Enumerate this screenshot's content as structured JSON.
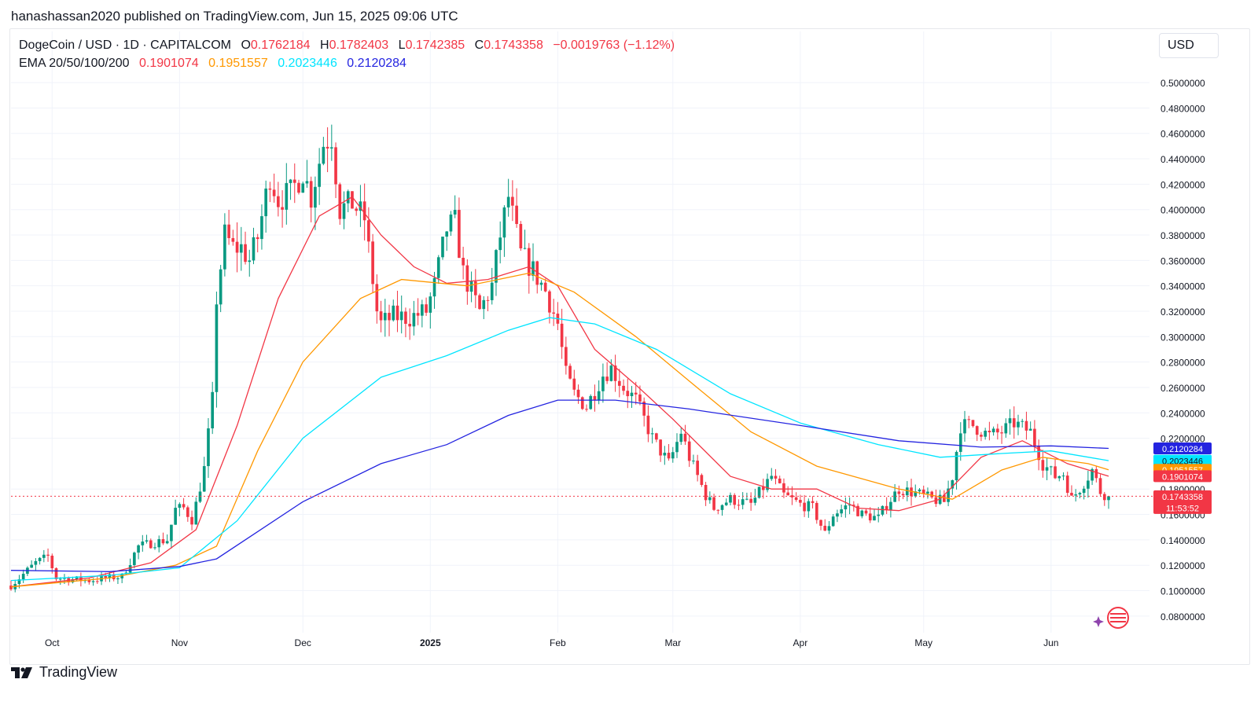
{
  "publisher_line": "hanashassan2020 published on TradingView.com, Jun 15, 2025 09:06 UTC",
  "legend": {
    "symbol": "DogeCoin / USD · 1D · CAPITALCOM",
    "o_label": "O",
    "o_value": "0.1762184",
    "h_label": "H",
    "h_value": "0.1782403",
    "l_label": "L",
    "l_value": "0.1742385",
    "c_label": "C",
    "c_value": "0.1743358",
    "change": "−0.0019763 (−1.12%)",
    "ema_label": "EMA 20/50/100/200",
    "ema20": "0.1901074",
    "ema50": "0.1951557",
    "ema100": "0.2023446",
    "ema200": "0.2120284"
  },
  "currency": "USD",
  "footer_brand": "TradingView",
  "colors": {
    "up": "#089981",
    "down": "#f23645",
    "ema20": "#f23645",
    "ema50": "#ff9800",
    "ema100": "#00e5ff",
    "ema200": "#2424e0"
  },
  "chart_data": {
    "type": "candlestick",
    "title": "DogeCoin / USD · 1D · CAPITALCOM",
    "ylim": [
      0.07,
      0.505
    ],
    "y_ticks": [
      "0.5000000",
      "0.4800000",
      "0.4600000",
      "0.4400000",
      "0.4200000",
      "0.4000000",
      "0.3800000",
      "0.3600000",
      "0.3400000",
      "0.3200000",
      "0.3000000",
      "0.2800000",
      "0.2600000",
      "0.2400000",
      "0.2200000",
      "0.1800000",
      "0.1600000",
      "0.1400000",
      "0.1200000",
      "0.1000000",
      "0.0800000"
    ],
    "x_labels": [
      {
        "label": "Oct",
        "date": "2024-10-01"
      },
      {
        "label": "Nov",
        "date": "2024-11-01"
      },
      {
        "label": "Dec",
        "date": "2024-12-01"
      },
      {
        "label": "2025",
        "date": "2025-01-01"
      },
      {
        "label": "Feb",
        "date": "2025-02-01"
      },
      {
        "label": "Mar",
        "date": "2025-03-01"
      },
      {
        "label": "Apr",
        "date": "2025-04-01"
      },
      {
        "label": "May",
        "date": "2025-05-01"
      },
      {
        "label": "Jun",
        "date": "2025-06-01"
      }
    ],
    "date_range": [
      "2024-09-21",
      "2025-06-15"
    ],
    "price_path": [
      [
        "2024-09-21",
        0.104
      ],
      [
        "2024-09-27",
        0.122
      ],
      [
        "2024-09-30",
        0.127
      ],
      [
        "2024-10-02",
        0.11
      ],
      [
        "2024-10-10",
        0.108
      ],
      [
        "2024-10-14",
        0.11
      ],
      [
        "2024-10-18",
        0.111
      ],
      [
        "2024-10-22",
        0.135
      ],
      [
        "2024-10-26",
        0.138
      ],
      [
        "2024-10-29",
        0.14
      ],
      [
        "2024-10-31",
        0.164
      ],
      [
        "2024-11-02",
        0.165
      ],
      [
        "2024-11-04",
        0.156
      ],
      [
        "2024-11-05",
        0.168
      ],
      [
        "2024-11-07",
        0.196
      ],
      [
        "2024-11-09",
        0.25
      ],
      [
        "2024-11-10",
        0.33
      ],
      [
        "2024-11-12",
        0.38
      ],
      [
        "2024-11-14",
        0.37
      ],
      [
        "2024-11-16",
        0.37
      ],
      [
        "2024-11-18",
        0.36
      ],
      [
        "2024-11-20",
        0.378
      ],
      [
        "2024-11-23",
        0.427
      ],
      [
        "2024-11-25",
        0.408
      ],
      [
        "2024-11-28",
        0.413
      ],
      [
        "2024-12-01",
        0.43
      ],
      [
        "2024-12-03",
        0.41
      ],
      [
        "2024-12-06",
        0.452
      ],
      [
        "2024-12-08",
        0.458
      ],
      [
        "2024-12-10",
        0.4
      ],
      [
        "2024-12-13",
        0.405
      ],
      [
        "2024-12-16",
        0.393
      ],
      [
        "2024-12-19",
        0.32
      ],
      [
        "2024-12-20",
        0.31
      ],
      [
        "2024-12-23",
        0.316
      ],
      [
        "2024-12-27",
        0.315
      ],
      [
        "2024-12-31",
        0.32
      ],
      [
        "2025-01-02",
        0.34
      ],
      [
        "2025-01-05",
        0.385
      ],
      [
        "2025-01-07",
        0.39
      ],
      [
        "2025-01-09",
        0.35
      ],
      [
        "2025-01-13",
        0.32
      ],
      [
        "2025-01-16",
        0.34
      ],
      [
        "2025-01-18",
        0.38
      ],
      [
        "2025-01-20",
        0.41
      ],
      [
        "2025-01-23",
        0.365
      ],
      [
        "2025-01-26",
        0.352
      ],
      [
        "2025-01-29",
        0.336
      ],
      [
        "2025-02-01",
        0.31
      ],
      [
        "2025-02-03",
        0.27
      ],
      [
        "2025-02-05",
        0.255
      ],
      [
        "2025-02-08",
        0.245
      ],
      [
        "2025-02-12",
        0.27
      ],
      [
        "2025-02-14",
        0.275
      ],
      [
        "2025-02-17",
        0.26
      ],
      [
        "2025-02-20",
        0.25
      ],
      [
        "2025-02-24",
        0.22
      ],
      [
        "2025-02-28",
        0.2
      ],
      [
        "2025-03-03",
        0.225
      ],
      [
        "2025-03-05",
        0.205
      ],
      [
        "2025-03-09",
        0.175
      ],
      [
        "2025-03-11",
        0.165
      ],
      [
        "2025-03-15",
        0.172
      ],
      [
        "2025-03-20",
        0.168
      ],
      [
        "2025-03-25",
        0.19
      ],
      [
        "2025-03-28",
        0.175
      ],
      [
        "2025-04-01",
        0.168
      ],
      [
        "2025-04-04",
        0.165
      ],
      [
        "2025-04-07",
        0.145
      ],
      [
        "2025-04-09",
        0.16
      ],
      [
        "2025-04-13",
        0.168
      ],
      [
        "2025-04-16",
        0.16
      ],
      [
        "2025-04-20",
        0.157
      ],
      [
        "2025-04-22",
        0.168
      ],
      [
        "2025-04-25",
        0.18
      ],
      [
        "2025-04-29",
        0.177
      ],
      [
        "2025-05-03",
        0.172
      ],
      [
        "2025-05-06",
        0.17
      ],
      [
        "2025-05-08",
        0.19
      ],
      [
        "2025-05-10",
        0.23
      ],
      [
        "2025-05-13",
        0.23
      ],
      [
        "2025-05-17",
        0.222
      ],
      [
        "2025-05-20",
        0.225
      ],
      [
        "2025-05-23",
        0.232
      ],
      [
        "2025-05-27",
        0.225
      ],
      [
        "2025-05-30",
        0.2
      ],
      [
        "2025-06-02",
        0.19
      ],
      [
        "2025-06-04",
        0.192
      ],
      [
        "2025-06-06",
        0.172
      ],
      [
        "2025-06-09",
        0.185
      ],
      [
        "2025-06-11",
        0.195
      ],
      [
        "2025-06-13",
        0.178
      ],
      [
        "2025-06-15",
        0.1743358
      ]
    ],
    "series": [
      {
        "name": "EMA 20",
        "color": "#f23645",
        "points": [
          [
            "2024-09-21",
            0.103
          ],
          [
            "2024-10-10",
            0.11
          ],
          [
            "2024-10-25",
            0.122
          ],
          [
            "2024-11-05",
            0.148
          ],
          [
            "2024-11-15",
            0.23
          ],
          [
            "2024-11-25",
            0.33
          ],
          [
            "2024-12-05",
            0.395
          ],
          [
            "2024-12-13",
            0.41
          ],
          [
            "2024-12-20",
            0.38
          ],
          [
            "2024-12-28",
            0.355
          ],
          [
            "2025-01-05",
            0.342
          ],
          [
            "2025-01-15",
            0.345
          ],
          [
            "2025-01-25",
            0.355
          ],
          [
            "2025-02-01",
            0.34
          ],
          [
            "2025-02-10",
            0.29
          ],
          [
            "2025-02-20",
            0.262
          ],
          [
            "2025-03-01",
            0.235
          ],
          [
            "2025-03-15",
            0.19
          ],
          [
            "2025-03-25",
            0.18
          ],
          [
            "2025-04-05",
            0.18
          ],
          [
            "2025-04-15",
            0.165
          ],
          [
            "2025-04-25",
            0.163
          ],
          [
            "2025-05-05",
            0.172
          ],
          [
            "2025-05-15",
            0.205
          ],
          [
            "2025-05-25",
            0.218
          ],
          [
            "2025-06-05",
            0.2
          ],
          [
            "2025-06-15",
            0.1901074
          ]
        ]
      },
      {
        "name": "EMA 50",
        "color": "#ff9800",
        "points": [
          [
            "2024-09-21",
            0.103
          ],
          [
            "2024-10-15",
            0.11
          ],
          [
            "2024-10-31",
            0.12
          ],
          [
            "2024-11-10",
            0.135
          ],
          [
            "2024-11-20",
            0.21
          ],
          [
            "2024-12-01",
            0.28
          ],
          [
            "2024-12-15",
            0.33
          ],
          [
            "2024-12-25",
            0.345
          ],
          [
            "2025-01-10",
            0.34
          ],
          [
            "2025-01-25",
            0.35
          ],
          [
            "2025-02-05",
            0.335
          ],
          [
            "2025-02-20",
            0.3
          ],
          [
            "2025-03-05",
            0.265
          ],
          [
            "2025-03-20",
            0.225
          ],
          [
            "2025-04-05",
            0.198
          ],
          [
            "2025-04-25",
            0.18
          ],
          [
            "2025-05-08",
            0.172
          ],
          [
            "2025-05-20",
            0.195
          ],
          [
            "2025-05-30",
            0.205
          ],
          [
            "2025-06-10",
            0.2
          ],
          [
            "2025-06-15",
            0.1951557
          ]
        ]
      },
      {
        "name": "EMA 100",
        "color": "#00e5ff",
        "points": [
          [
            "2024-09-21",
            0.108
          ],
          [
            "2024-10-15",
            0.112
          ],
          [
            "2024-11-01",
            0.118
          ],
          [
            "2024-11-15",
            0.155
          ],
          [
            "2024-12-01",
            0.22
          ],
          [
            "2024-12-20",
            0.268
          ],
          [
            "2025-01-05",
            0.285
          ],
          [
            "2025-01-20",
            0.305
          ],
          [
            "2025-01-30",
            0.315
          ],
          [
            "2025-02-10",
            0.31
          ],
          [
            "2025-02-25",
            0.29
          ],
          [
            "2025-03-15",
            0.255
          ],
          [
            "2025-04-01",
            0.232
          ],
          [
            "2025-04-20",
            0.215
          ],
          [
            "2025-05-05",
            0.205
          ],
          [
            "2025-05-20",
            0.208
          ],
          [
            "2025-06-01",
            0.21
          ],
          [
            "2025-06-15",
            0.2023446
          ]
        ]
      },
      {
        "name": "EMA 200",
        "color": "#2424e0",
        "points": [
          [
            "2024-09-21",
            0.116
          ],
          [
            "2024-10-15",
            0.115
          ],
          [
            "2024-11-01",
            0.119
          ],
          [
            "2024-11-10",
            0.125
          ],
          [
            "2024-12-01",
            0.17
          ],
          [
            "2024-12-20",
            0.2
          ],
          [
            "2025-01-05",
            0.215
          ],
          [
            "2025-01-20",
            0.238
          ],
          [
            "2025-02-01",
            0.25
          ],
          [
            "2025-02-15",
            0.25
          ],
          [
            "2025-03-05",
            0.243
          ],
          [
            "2025-04-01",
            0.23
          ],
          [
            "2025-04-25",
            0.218
          ],
          [
            "2025-05-15",
            0.213
          ],
          [
            "2025-06-01",
            0.214
          ],
          [
            "2025-06-15",
            0.2120284
          ]
        ]
      }
    ],
    "price_labels": [
      {
        "value": 0.2120284,
        "text": "0.2120284",
        "color": "#2424e0"
      },
      {
        "value": 0.2023446,
        "text": "0.2023446",
        "color": "#00e5ff",
        "text_color": "#131722"
      },
      {
        "value": 0.1951557,
        "text": "0.1951557",
        "color": "#ff9800"
      },
      {
        "value": 0.1901074,
        "text": "0.1901074",
        "color": "#f23645"
      },
      {
        "value": 0.1743358,
        "text": "0.1743358",
        "color": "#f23645",
        "sub": "11:53:52"
      }
    ],
    "last_price": 0.1743358
  }
}
